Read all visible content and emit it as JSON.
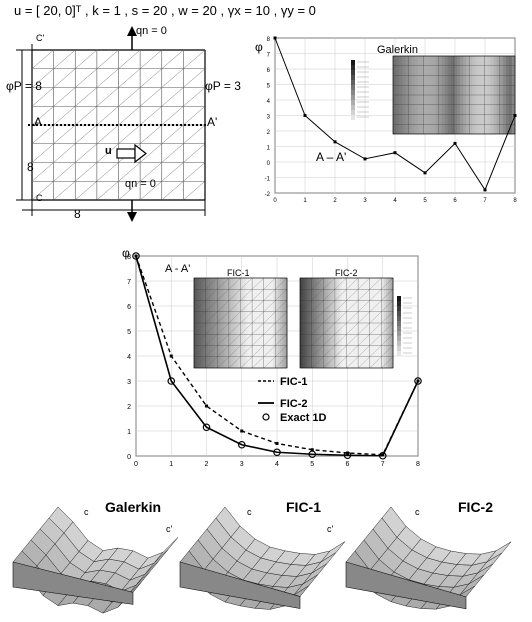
{
  "params": "u = [ 20, 0]ᵀ , k = 1 , s = 20 , w = 20 , γx = 10 , γy = 0",
  "domain_diagram": {
    "qn_top": "qn = 0",
    "qn_bottom": "qn = 0",
    "phi_left": "φP = 8",
    "phi_right": "φP = 3",
    "section_left": "A",
    "section_right": "A'",
    "c_top": "C'",
    "c_bottom": "C",
    "velocity": "u",
    "dim_bottom": "8",
    "dim_left": "8"
  },
  "galerkin_chart": {
    "axis_symbol": "φ",
    "title": "Galerkin",
    "section_label": "A – A'"
  },
  "fic_chart": {
    "axis_symbol": "φ",
    "section_label": "A - A'",
    "inset1_title": "FIC-1",
    "inset2_title": "FIC-2",
    "legend": [
      "FIC-1",
      "FIC-2",
      "Exact 1D"
    ]
  },
  "surfaces": {
    "galerkin_title": "Galerkin",
    "fic1_title": "FIC-1",
    "fic2_title": "FIC-2",
    "c_label": "c",
    "c_prime_label": "c'"
  },
  "chart_data": [
    {
      "type": "line",
      "title": "Galerkin",
      "x": [
        0,
        1,
        2,
        3,
        4,
        5,
        6,
        7,
        8
      ],
      "series": [
        {
          "values": [
            8,
            3.0,
            1.3,
            0.2,
            0.6,
            -0.7,
            1.2,
            -1.8,
            3.0
          ]
        }
      ],
      "xlim": [
        0,
        8
      ],
      "ylim": [
        -2,
        8
      ],
      "xticks": [
        0,
        1,
        2,
        3,
        4,
        5,
        6,
        7,
        8
      ],
      "yticks": [
        -2,
        -1,
        0,
        1,
        2,
        3,
        4,
        5,
        6,
        7,
        8
      ],
      "grid": true
    },
    {
      "type": "line",
      "x": [
        0,
        1,
        2,
        3,
        4,
        5,
        6,
        7,
        8
      ],
      "series": [
        {
          "name": "FIC-1",
          "values": [
            8,
            4.0,
            2.0,
            1.0,
            0.5,
            0.25,
            0.12,
            0.05,
            3.0
          ]
        },
        {
          "name": "FIC-2",
          "values": [
            8,
            3.0,
            1.15,
            0.45,
            0.15,
            0.07,
            0.03,
            0.01,
            3.0
          ]
        },
        {
          "name": "Exact 1D",
          "values": [
            8,
            3.0,
            1.15,
            0.45,
            0.15,
            0.07,
            0.03,
            0.01,
            3.0
          ]
        }
      ],
      "xlim": [
        0,
        8
      ],
      "ylim": [
        0,
        8
      ],
      "xticks": [
        0,
        1,
        2,
        3,
        4,
        5,
        6,
        7,
        8
      ],
      "yticks": [
        0,
        1,
        2,
        3,
        4,
        5,
        6,
        7,
        8
      ],
      "grid": true
    }
  ]
}
